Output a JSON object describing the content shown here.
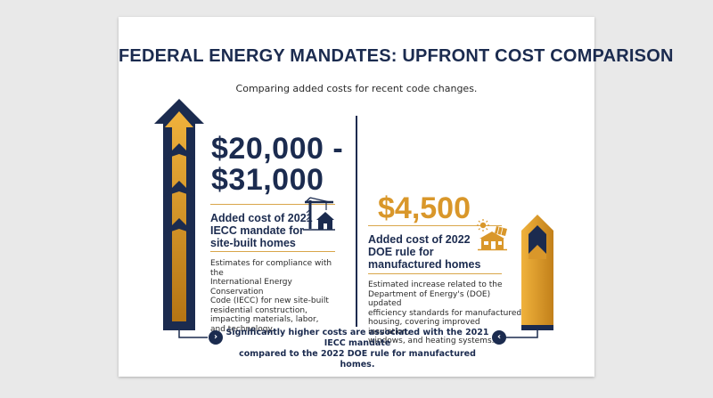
{
  "title": "FEDERAL ENERGY MANDATES: UPFRONT COST COMPARISON",
  "subtitle": "Comparing added costs for recent code changes.",
  "left": {
    "value_line1": "$20,000 -",
    "value_line2": "$31,000",
    "heading_lines": [
      "Added cost of 2021",
      "IECC mandate for",
      "site-built homes"
    ],
    "description_lines": [
      "Estimates for compliance with the",
      "International Energy Conservation",
      "Code (IECC) for new site-built",
      "residential construction,",
      "impacting materials, labor,",
      "and technology."
    ],
    "icon": "construction-crane-house-icon"
  },
  "right": {
    "value": "$4,500",
    "heading_lines": [
      "Added cost of 2022",
      "DOE rule for",
      "manufactured homes"
    ],
    "description_lines": [
      "Estimated increase related to the",
      "Department of Energy's (DOE) updated",
      "efficiency standards for manufactured",
      "housing, covering improved insulation,",
      "windows, and heating systems."
    ],
    "icon": "solar-manufactured-home-icon"
  },
  "footer": {
    "lines": [
      "Significantly higher costs are associated with the 2021 IECC mandate",
      "compared to the 2022 DOE rule for manufactured homes."
    ],
    "left_button_glyph": "›",
    "right_button_glyph": "‹"
  },
  "colors": {
    "navy": "#1b2b4f",
    "gold": "#d9972a",
    "background": "#e9e9e9",
    "card": "#ffffff"
  }
}
